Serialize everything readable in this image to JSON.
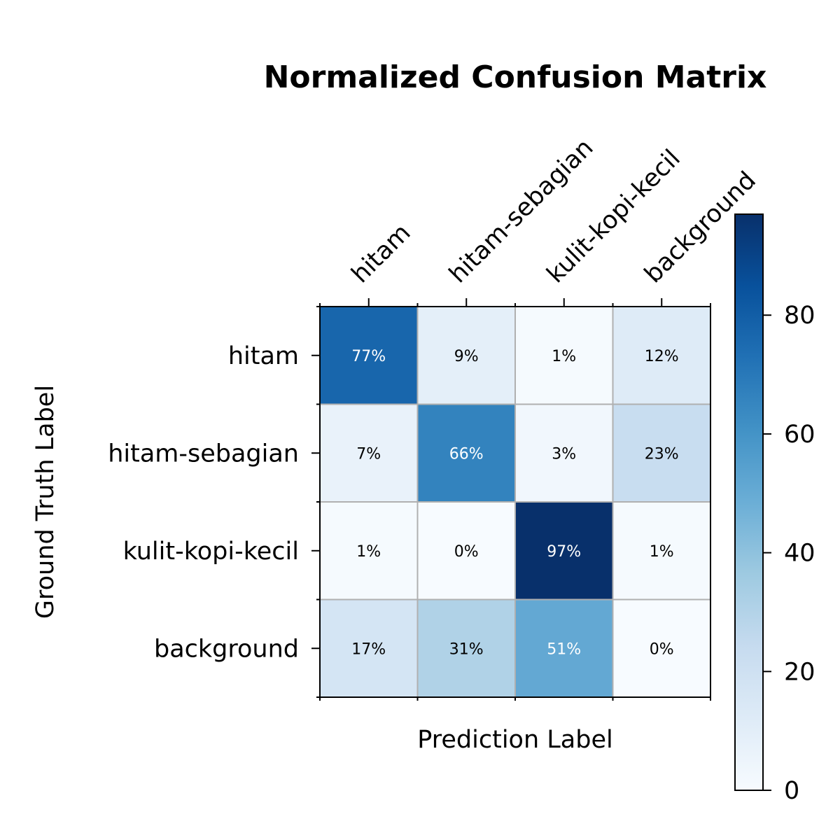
{
  "chart_data": {
    "type": "heatmap",
    "title": "Normalized Confusion Matrix",
    "xlabel": "Prediction Label",
    "ylabel": "Ground Truth Label",
    "x_categories": [
      "hitam",
      "hitam-sebagian",
      "kulit-kopi-kecil",
      "background"
    ],
    "y_categories": [
      "hitam",
      "hitam-sebagian",
      "kulit-kopi-kecil",
      "background"
    ],
    "values": [
      [
        77,
        9,
        1,
        12
      ],
      [
        7,
        66,
        3,
        23
      ],
      [
        1,
        0,
        97,
        1
      ],
      [
        17,
        31,
        51,
        0
      ]
    ],
    "cell_labels": [
      [
        "77%",
        "9%",
        "1%",
        "12%"
      ],
      [
        "7%",
        "66%",
        "3%",
        "23%"
      ],
      [
        "1%",
        "0%",
        "97%",
        "1%"
      ],
      [
        "17%",
        "31%",
        "51%",
        "0%"
      ]
    ],
    "colormap": "Blues",
    "value_range": [
      0,
      97
    ],
    "colorbar": {
      "ticks": [
        0,
        20,
        40,
        60,
        80
      ],
      "tick_labels": [
        "0",
        "20",
        "40",
        "60",
        "80"
      ]
    },
    "x_tick_position": "top",
    "cell_grid": true
  }
}
